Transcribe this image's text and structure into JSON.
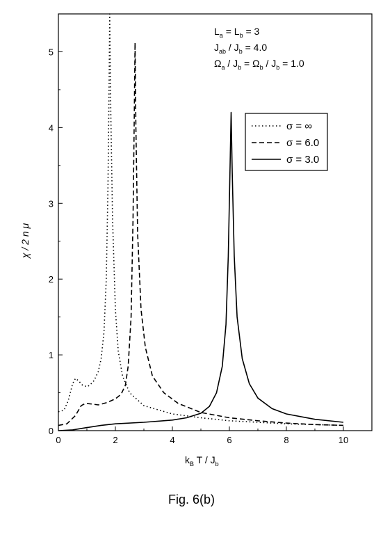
{
  "caption": "Fig. 6(b)",
  "annotations": {
    "line1": {
      "main": "L",
      "sub1": "a",
      "mid": " = L",
      "sub2": "b",
      "tail": " = 3"
    },
    "line2": {
      "main": "J",
      "sub1": "ab",
      "mid": " / J",
      "sub2": "b",
      "tail": " = 4.0"
    },
    "line3": {
      "a": "Ω",
      "sa": "a",
      "b": " / J",
      "sb": "b",
      "c": " = Ω",
      "sc": "b",
      "d": " / J",
      "sd": "b",
      "e": " = 1.0"
    }
  },
  "axes": {
    "x_title": {
      "main": "k",
      "sub1": "B",
      "mid": " T / J",
      "sub2": "b"
    },
    "y_title": "χ / 2 n μ"
  },
  "chart_data": {
    "type": "line",
    "xlim": [
      0,
      11
    ],
    "ylim": [
      0,
      5.5
    ],
    "x_ticks": [
      0,
      2,
      4,
      6,
      8,
      10
    ],
    "y_ticks": [
      0,
      1,
      2,
      3,
      4,
      5
    ],
    "grid": false,
    "legend_position": "top-right",
    "series": [
      {
        "name": "σ = ∞",
        "dash": "dotted",
        "points": [
          [
            0.0,
            0.25
          ],
          [
            0.2,
            0.27
          ],
          [
            0.35,
            0.4
          ],
          [
            0.5,
            0.62
          ],
          [
            0.6,
            0.69
          ],
          [
            0.7,
            0.66
          ],
          [
            0.85,
            0.6
          ],
          [
            1.0,
            0.58
          ],
          [
            1.1,
            0.6
          ],
          [
            1.25,
            0.66
          ],
          [
            1.4,
            0.78
          ],
          [
            1.5,
            0.95
          ],
          [
            1.6,
            1.3
          ],
          [
            1.68,
            2.0
          ],
          [
            1.74,
            3.2
          ],
          [
            1.78,
            4.6
          ],
          [
            1.8,
            5.5
          ],
          [
            1.84,
            4.2
          ],
          [
            1.9,
            2.8
          ],
          [
            2.0,
            1.6
          ],
          [
            2.1,
            1.05
          ],
          [
            2.25,
            0.72
          ],
          [
            2.5,
            0.5
          ],
          [
            3.0,
            0.33
          ],
          [
            4.0,
            0.22
          ],
          [
            5.0,
            0.17
          ],
          [
            6.0,
            0.13
          ],
          [
            7.0,
            0.11
          ],
          [
            8.0,
            0.09
          ],
          [
            9.0,
            0.08
          ],
          [
            10.0,
            0.07
          ]
        ]
      },
      {
        "name": "σ = 6.0",
        "dash": "dashed",
        "points": [
          [
            0.0,
            0.07
          ],
          [
            0.3,
            0.09
          ],
          [
            0.6,
            0.2
          ],
          [
            0.8,
            0.33
          ],
          [
            0.95,
            0.36
          ],
          [
            1.2,
            0.35
          ],
          [
            1.4,
            0.34
          ],
          [
            1.7,
            0.37
          ],
          [
            2.0,
            0.42
          ],
          [
            2.2,
            0.48
          ],
          [
            2.35,
            0.6
          ],
          [
            2.45,
            0.85
          ],
          [
            2.55,
            1.5
          ],
          [
            2.62,
            2.8
          ],
          [
            2.66,
            4.1
          ],
          [
            2.69,
            5.12
          ],
          [
            2.72,
            4.0
          ],
          [
            2.78,
            2.6
          ],
          [
            2.9,
            1.6
          ],
          [
            3.05,
            1.1
          ],
          [
            3.3,
            0.72
          ],
          [
            3.7,
            0.5
          ],
          [
            4.2,
            0.36
          ],
          [
            5.0,
            0.24
          ],
          [
            6.0,
            0.17
          ],
          [
            7.0,
            0.13
          ],
          [
            8.0,
            0.1
          ],
          [
            9.0,
            0.08
          ],
          [
            10.0,
            0.07
          ]
        ]
      },
      {
        "name": "σ = 3.0",
        "dash": "solid",
        "points": [
          [
            0.0,
            0.0
          ],
          [
            0.5,
            0.01
          ],
          [
            1.0,
            0.04
          ],
          [
            1.5,
            0.07
          ],
          [
            2.0,
            0.09
          ],
          [
            3.0,
            0.11
          ],
          [
            4.0,
            0.14
          ],
          [
            4.5,
            0.17
          ],
          [
            5.0,
            0.23
          ],
          [
            5.3,
            0.32
          ],
          [
            5.55,
            0.5
          ],
          [
            5.75,
            0.85
          ],
          [
            5.88,
            1.4
          ],
          [
            5.96,
            2.3
          ],
          [
            6.02,
            3.4
          ],
          [
            6.06,
            4.2
          ],
          [
            6.1,
            3.4
          ],
          [
            6.17,
            2.3
          ],
          [
            6.27,
            1.5
          ],
          [
            6.45,
            0.95
          ],
          [
            6.7,
            0.62
          ],
          [
            7.0,
            0.43
          ],
          [
            7.5,
            0.29
          ],
          [
            8.0,
            0.22
          ],
          [
            9.0,
            0.15
          ],
          [
            10.0,
            0.11
          ]
        ]
      }
    ]
  }
}
